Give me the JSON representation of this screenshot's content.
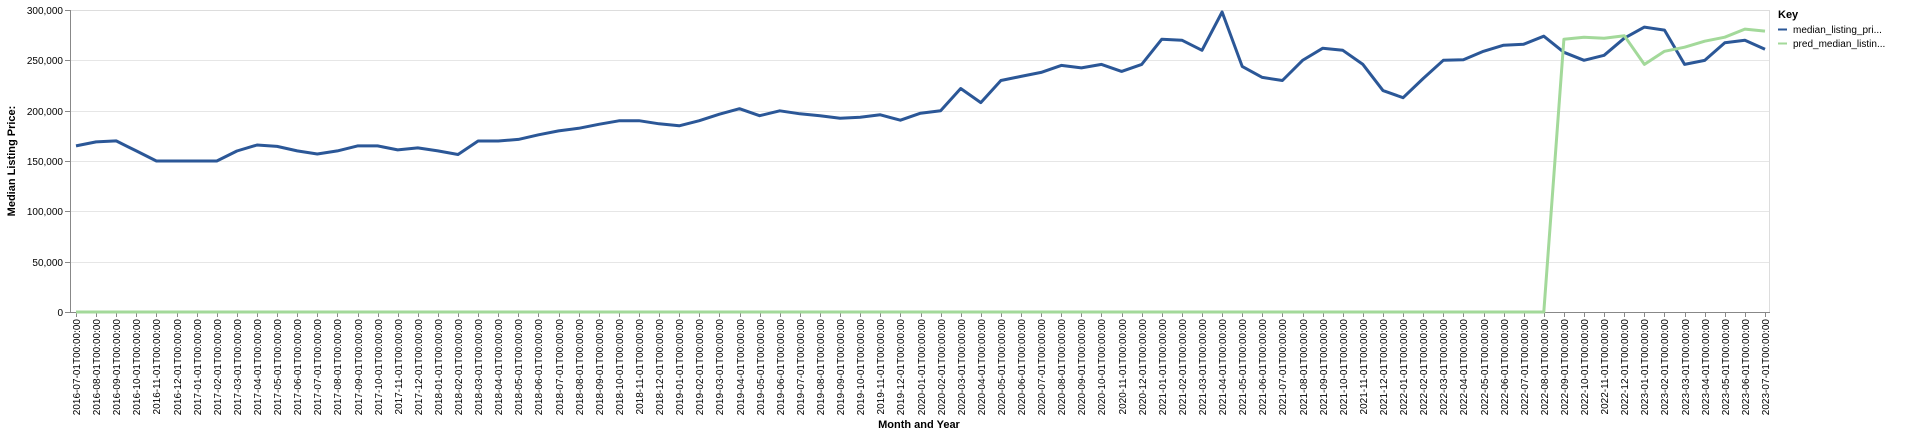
{
  "chart_data": {
    "type": "line",
    "xlabel": "Month and Year",
    "ylabel": "Median Listing Price:",
    "ylim": [
      0,
      300000
    ],
    "yticks": [
      "0",
      "50,000",
      "100,000",
      "150,000",
      "200,000",
      "250,000",
      "300,000"
    ],
    "categories": [
      "2016-07-01T00:00:00",
      "2016-08-01T00:00:00",
      "2016-09-01T00:00:00",
      "2016-10-01T00:00:00",
      "2016-11-01T00:00:00",
      "2016-12-01T00:00:00",
      "2017-01-01T00:00:00",
      "2017-02-01T00:00:00",
      "2017-03-01T00:00:00",
      "2017-04-01T00:00:00",
      "2017-05-01T00:00:00",
      "2017-06-01T00:00:00",
      "2017-07-01T00:00:00",
      "2017-08-01T00:00:00",
      "2017-09-01T00:00:00",
      "2017-10-01T00:00:00",
      "2017-11-01T00:00:00",
      "2017-12-01T00:00:00",
      "2018-01-01T00:00:00",
      "2018-02-01T00:00:00",
      "2018-03-01T00:00:00",
      "2018-04-01T00:00:00",
      "2018-05-01T00:00:00",
      "2018-06-01T00:00:00",
      "2018-07-01T00:00:00",
      "2018-08-01T00:00:00",
      "2018-09-01T00:00:00",
      "2018-10-01T00:00:00",
      "2018-11-01T00:00:00",
      "2018-12-01T00:00:00",
      "2019-01-01T00:00:00",
      "2019-02-01T00:00:00",
      "2019-03-01T00:00:00",
      "2019-04-01T00:00:00",
      "2019-05-01T00:00:00",
      "2019-06-01T00:00:00",
      "2019-07-01T00:00:00",
      "2019-08-01T00:00:00",
      "2019-09-01T00:00:00",
      "2019-10-01T00:00:00",
      "2019-11-01T00:00:00",
      "2019-12-01T00:00:00",
      "2020-01-01T00:00:00",
      "2020-02-01T00:00:00",
      "2020-03-01T00:00:00",
      "2020-04-01T00:00:00",
      "2020-05-01T00:00:00",
      "2020-06-01T00:00:00",
      "2020-07-01T00:00:00",
      "2020-08-01T00:00:00",
      "2020-09-01T00:00:00",
      "2020-10-01T00:00:00",
      "2020-11-01T00:00:00",
      "2020-12-01T00:00:00",
      "2021-01-01T00:00:00",
      "2021-02-01T00:00:00",
      "2021-03-01T00:00:00",
      "2021-04-01T00:00:00",
      "2021-05-01T00:00:00",
      "2021-06-01T00:00:00",
      "2021-07-01T00:00:00",
      "2021-08-01T00:00:00",
      "2021-09-01T00:00:00",
      "2021-10-01T00:00:00",
      "2021-11-01T00:00:00",
      "2021-12-01T00:00:00",
      "2022-01-01T00:00:00",
      "2022-02-01T00:00:00",
      "2022-03-01T00:00:00",
      "2022-04-01T00:00:00",
      "2022-05-01T00:00:00",
      "2022-06-01T00:00:00",
      "2022-07-01T00:00:00",
      "2022-08-01T00:00:00",
      "2022-09-01T00:00:00",
      "2022-10-01T00:00:00",
      "2022-11-01T00:00:00",
      "2022-12-01T00:00:00",
      "2023-01-01T00:00:00",
      "2023-02-01T00:00:00",
      "2023-03-01T00:00:00",
      "2023-04-01T00:00:00",
      "2023-05-01T00:00:00",
      "2023-06-01T00:00:00",
      "2023-07-01T00:00:00"
    ],
    "series": [
      {
        "name": "median_listing_pri...",
        "color": "#2b5797",
        "values": [
          165000,
          169000,
          170000,
          160000,
          150000,
          150000,
          150000,
          150000,
          159900,
          165900,
          164500,
          160000,
          157000,
          160000,
          165000,
          165000,
          161000,
          163000,
          160000,
          156500,
          169900,
          169900,
          171500,
          176000,
          179900,
          182500,
          186500,
          189900,
          190000,
          187000,
          185000,
          190000,
          196500,
          202000,
          195000,
          199900,
          196900,
          195000,
          192500,
          193500,
          195900,
          190500,
          197500,
          200000,
          222000,
          208000,
          230000,
          234000,
          238000,
          245000,
          242500,
          246000,
          239000,
          246000,
          271000,
          270000,
          260000,
          298000,
          244000,
          233000,
          230000,
          249900,
          262000,
          260000,
          246000,
          219900,
          212900,
          232000,
          250000,
          250500,
          259000,
          265000,
          266000,
          274000,
          258000,
          250000,
          255000,
          272000,
          283000,
          280000,
          246000,
          249900,
          267500,
          270000,
          261000
        ]
      },
      {
        "name": "pred_median_listin...",
        "color": "#a3d99a",
        "values": [
          0,
          0,
          0,
          0,
          0,
          0,
          0,
          0,
          0,
          0,
          0,
          0,
          0,
          0,
          0,
          0,
          0,
          0,
          0,
          0,
          0,
          0,
          0,
          0,
          0,
          0,
          0,
          0,
          0,
          0,
          0,
          0,
          0,
          0,
          0,
          0,
          0,
          0,
          0,
          0,
          0,
          0,
          0,
          0,
          0,
          0,
          0,
          0,
          0,
          0,
          0,
          0,
          0,
          0,
          0,
          0,
          0,
          0,
          0,
          0,
          0,
          0,
          0,
          0,
          0,
          0,
          0,
          0,
          0,
          0,
          0,
          0,
          0,
          0,
          271000,
          273000,
          272000,
          274500,
          246000,
          259000,
          263000,
          269000,
          273000,
          281000,
          279000
        ]
      }
    ],
    "legend": {
      "title": "Key",
      "position": "right"
    },
    "grid": true
  }
}
